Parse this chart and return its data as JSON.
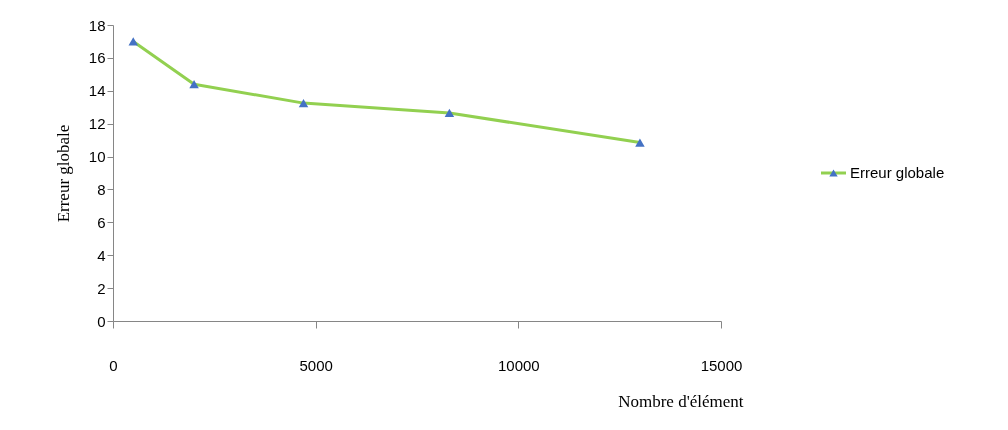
{
  "chart_data": {
    "type": "line",
    "xlabel": "Nombre d'élément",
    "ylabel": "Erreur globale",
    "x": [
      500,
      2000,
      4700,
      8300,
      13000
    ],
    "series": [
      {
        "name": "Erreur globale",
        "color": "#92d050",
        "values": [
          17,
          14.4,
          13.25,
          12.65,
          10.85
        ]
      }
    ],
    "xlim": [
      0,
      15000
    ],
    "xticks": [
      0,
      5000,
      10000,
      15000
    ],
    "ylim": [
      0,
      18
    ],
    "yticks": [
      0,
      2,
      4,
      6,
      8,
      10,
      12,
      14,
      16,
      18
    ],
    "marker": "triangle",
    "legend": "right",
    "grid": false
  }
}
